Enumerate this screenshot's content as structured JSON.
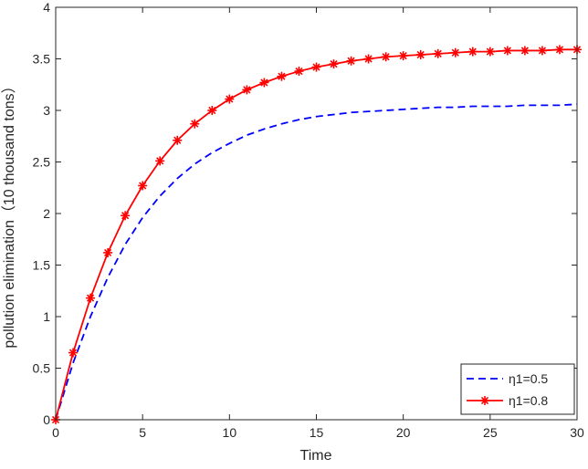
{
  "chart_data": {
    "type": "line",
    "xlabel": "Time",
    "ylabel": "pollution elimination（10 thousand tons）",
    "xlim": [
      0,
      30
    ],
    "ylim": [
      0,
      4
    ],
    "xticks": [
      0,
      5,
      10,
      15,
      20,
      25,
      30
    ],
    "yticks": [
      0,
      0.5,
      1,
      1.5,
      2,
      2.5,
      3,
      3.5,
      4
    ],
    "xtick_labels": [
      "0",
      "5",
      "10",
      "15",
      "20",
      "25",
      "30"
    ],
    "ytick_labels": [
      "0",
      "0.5",
      "1",
      "1.5",
      "2",
      "2.5",
      "3",
      "3.5",
      "4"
    ],
    "legend_position": "bottom-right",
    "series": [
      {
        "name": "η1=0.5",
        "style": "dashed",
        "marker": "none",
        "color": "#0000ff",
        "x": [
          0,
          1,
          2,
          3,
          4,
          5,
          6,
          7,
          8,
          9,
          10,
          11,
          12,
          13,
          14,
          15,
          16,
          17,
          18,
          19,
          20,
          21,
          22,
          23,
          24,
          25,
          26,
          27,
          28,
          29,
          30
        ],
        "values": [
          0,
          0.55,
          1.0,
          1.38,
          1.7,
          1.96,
          2.17,
          2.34,
          2.48,
          2.59,
          2.68,
          2.76,
          2.82,
          2.87,
          2.91,
          2.94,
          2.96,
          2.98,
          2.99,
          3.0,
          3.01,
          3.02,
          3.03,
          3.03,
          3.04,
          3.04,
          3.04,
          3.05,
          3.05,
          3.05,
          3.06
        ]
      },
      {
        "name": "η1=0.8",
        "style": "solid",
        "marker": "asterisk",
        "color": "#ff0000",
        "x": [
          0,
          1,
          2,
          3,
          4,
          5,
          6,
          7,
          8,
          9,
          10,
          11,
          12,
          13,
          14,
          15,
          16,
          17,
          18,
          19,
          20,
          21,
          22,
          23,
          24,
          25,
          26,
          27,
          28,
          29,
          30
        ],
        "values": [
          0,
          0.65,
          1.18,
          1.62,
          1.98,
          2.27,
          2.51,
          2.71,
          2.87,
          3.0,
          3.11,
          3.2,
          3.27,
          3.33,
          3.38,
          3.42,
          3.45,
          3.48,
          3.5,
          3.52,
          3.53,
          3.54,
          3.55,
          3.56,
          3.57,
          3.57,
          3.58,
          3.58,
          3.58,
          3.59,
          3.59
        ]
      }
    ]
  }
}
